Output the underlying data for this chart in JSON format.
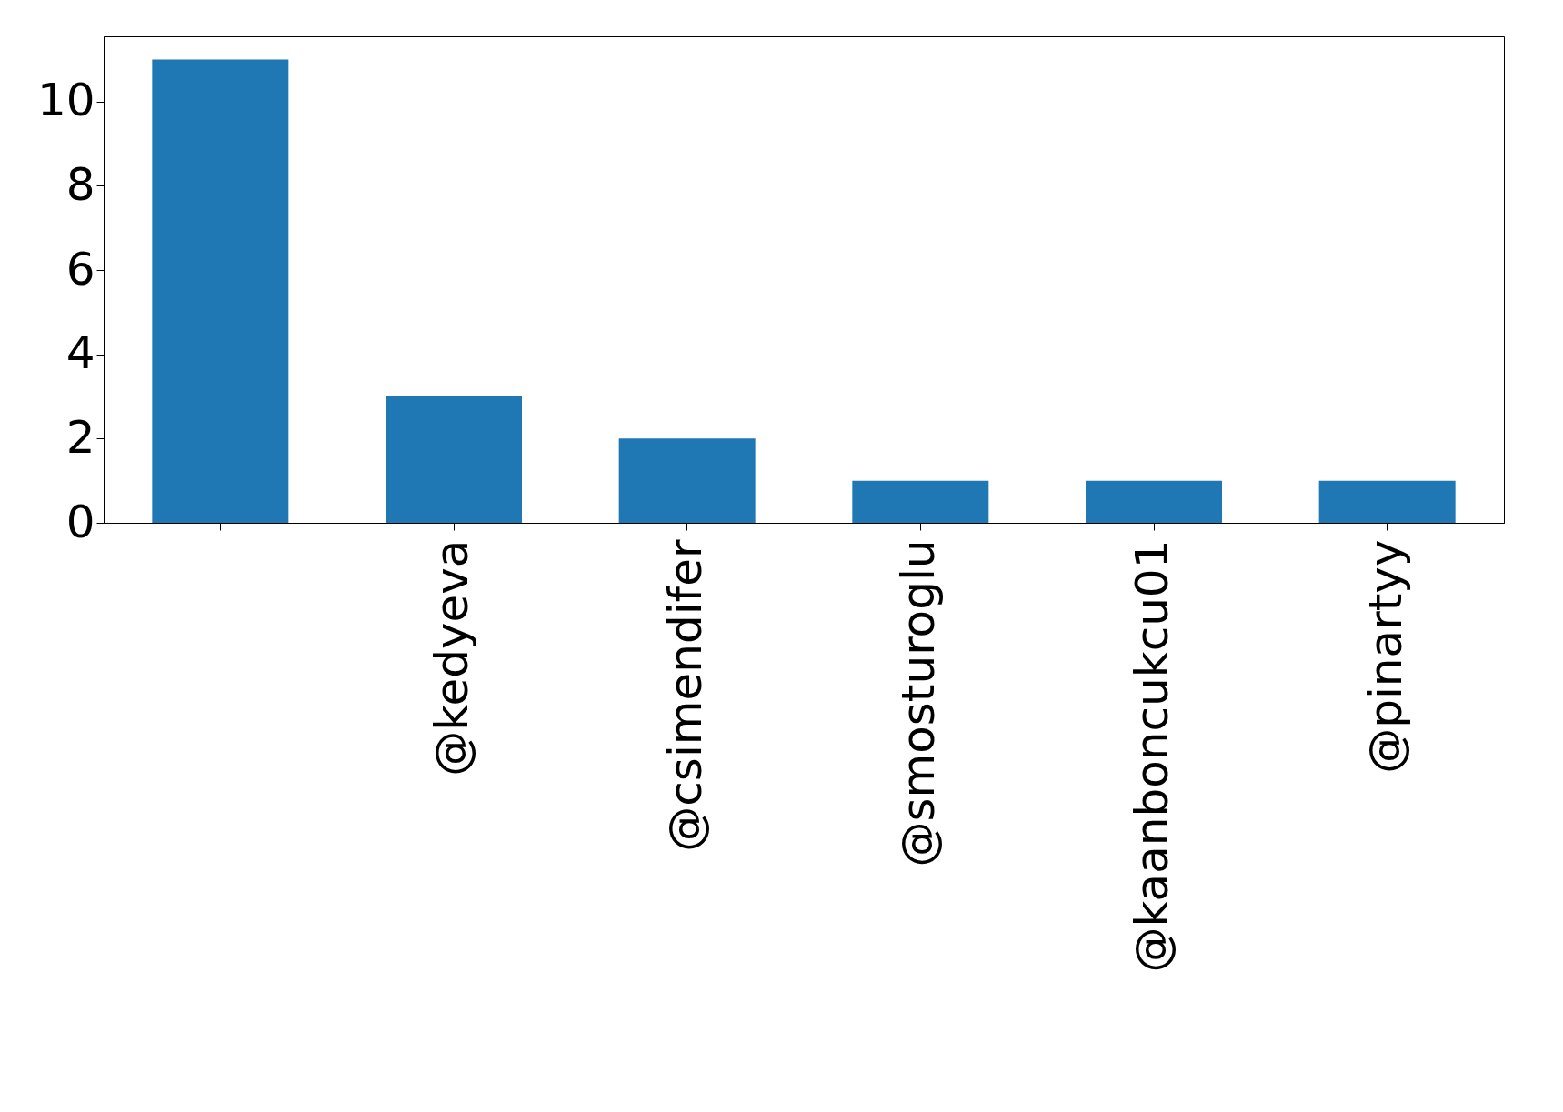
{
  "chart_data": {
    "type": "bar",
    "categories": [
      null,
      "@kedyeva",
      "@csimendifer",
      "@smosturoglu",
      "@kaanboncukcu01",
      "@pinartyy"
    ],
    "values": [
      11,
      3,
      2,
      1,
      1,
      1
    ],
    "color": "#1f77b4",
    "ylim": [
      0,
      11.55
    ],
    "yticks": [
      0,
      2,
      4,
      6,
      8,
      10
    ],
    "grid": false
  }
}
